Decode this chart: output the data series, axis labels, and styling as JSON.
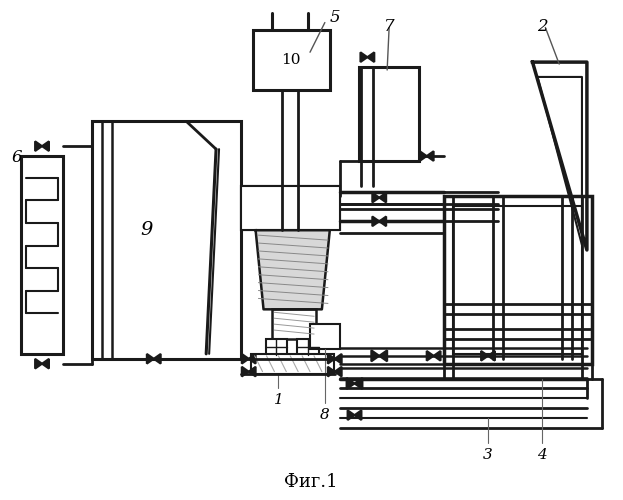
{
  "title": "Фиг.1",
  "title_fontsize": 13,
  "background_color": "#ffffff",
  "line_color": "#1a1a1a"
}
